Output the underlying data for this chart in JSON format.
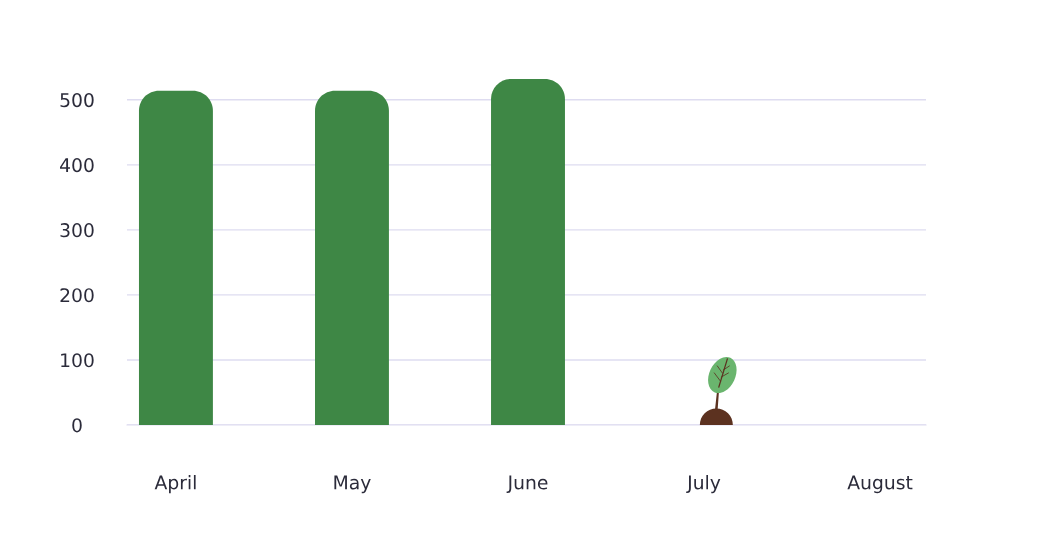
{
  "chart_data": {
    "type": "bar",
    "categories": [
      "April",
      "May",
      "June",
      "July",
      "August"
    ],
    "values": [
      514,
      514,
      532,
      null,
      null
    ],
    "color": "#3e8745",
    "ylim": [
      0,
      532
    ],
    "yticks": [
      0,
      100,
      200,
      300,
      400,
      500
    ],
    "grid": "y"
  }
}
